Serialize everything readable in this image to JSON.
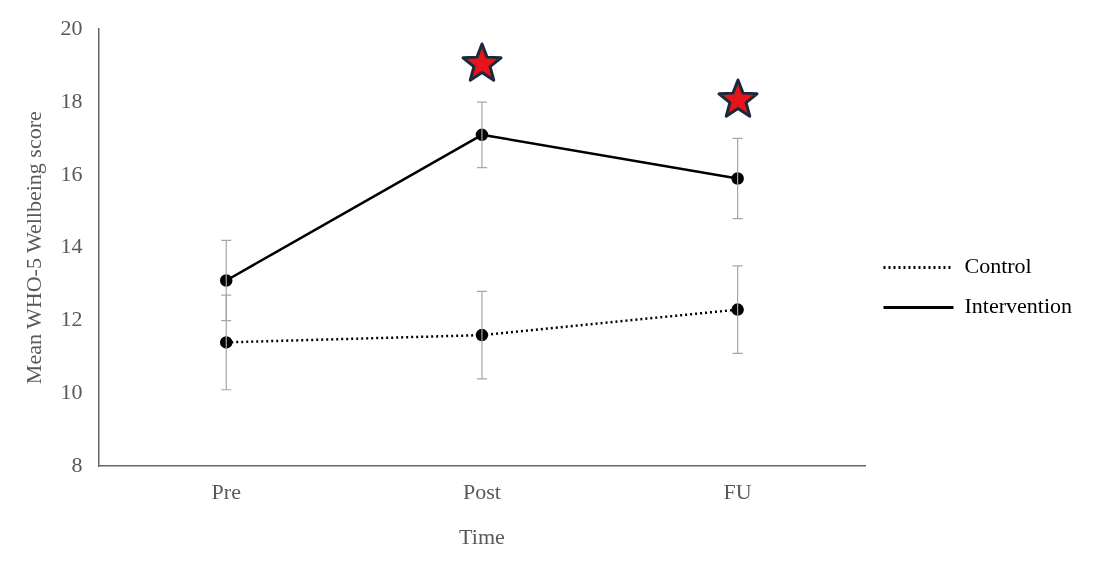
{
  "chart_data": {
    "type": "line",
    "xlabel": "Time",
    "ylabel": "Mean WHO-5 Wellbeing score",
    "categories": [
      "Pre",
      "Post",
      "FU"
    ],
    "series": [
      {
        "name": "Control",
        "color": "#000000",
        "line_style": "dotted",
        "values": [
          11.4,
          11.6,
          12.3
        ],
        "errors": [
          1.3,
          1.2,
          1.2
        ]
      },
      {
        "name": "Intervention",
        "color": "#000000",
        "line_style": "solid",
        "values": [
          13.1,
          17.1,
          15.9
        ],
        "errors": [
          1.1,
          0.9,
          1.1
        ]
      }
    ],
    "ylim": [
      8,
      20
    ],
    "yticks": [
      8,
      10,
      12,
      14,
      16,
      18,
      20
    ],
    "grid": false,
    "legend": "right",
    "marker": "circle"
  }
}
